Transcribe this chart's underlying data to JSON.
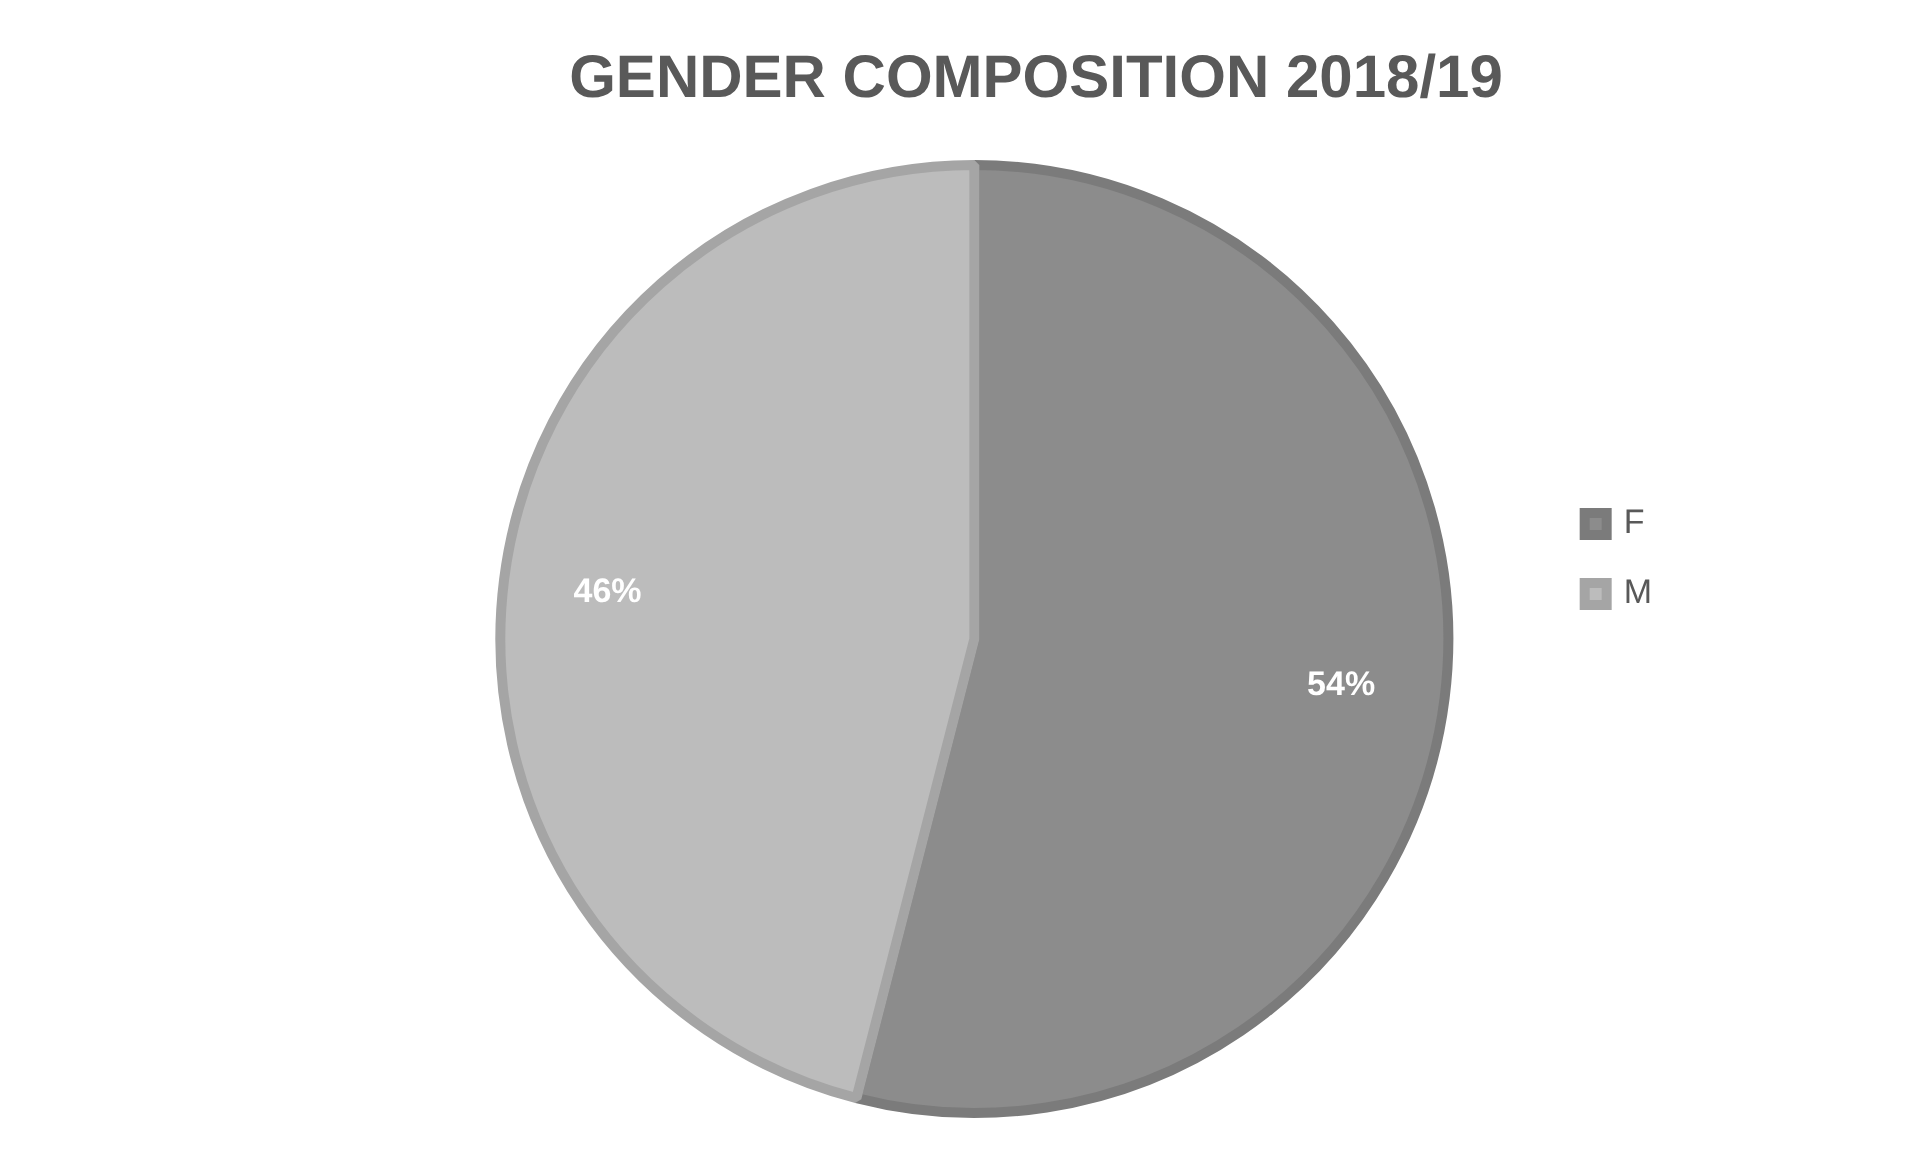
{
  "chart_data": {
    "type": "pie",
    "title": "GENDER COMPOSITION 2018/19",
    "categories": [
      "F",
      "M"
    ],
    "values": [
      54,
      46
    ],
    "colors": [
      "#8c8c8c",
      "#bcbcbc"
    ],
    "legend": "right",
    "value_labels": [
      "54%",
      "46%"
    ]
  }
}
